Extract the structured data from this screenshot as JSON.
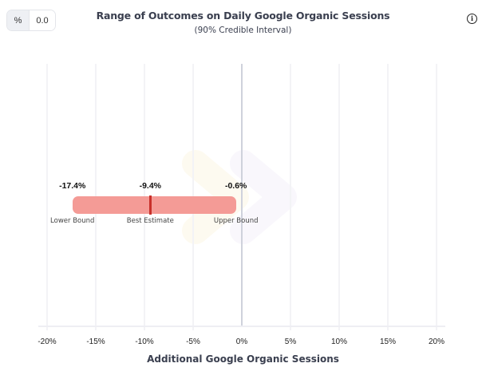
{
  "controls": {
    "unit_label": "%",
    "value_label": "0.0"
  },
  "header": {
    "title": "Range of Outcomes on Daily Google Organic Sessions",
    "subtitle": "(90% Credible Interval)",
    "info_icon": "info-icon",
    "info_glyph": "i"
  },
  "colors": {
    "bar_fill": "#f49b96",
    "best_estimate_marker": "#c8302a",
    "zero_line": "#cfd2dc",
    "gridline": "#f3f3f6"
  },
  "chart_data": {
    "type": "interval",
    "title": "Range of Outcomes on Daily Google Organic Sessions",
    "subtitle": "(90% Credible Interval)",
    "xlabel": "Additional Google Organic Sessions",
    "ylabel": "",
    "xlim": [
      -20,
      20
    ],
    "x_ticks": [
      -20,
      -15,
      -10,
      -5,
      0,
      5,
      10,
      15,
      20
    ],
    "x_tick_labels": [
      "-20%",
      "-15%",
      "-10%",
      "-5%",
      "0%",
      "5%",
      "10%",
      "15%",
      "20%"
    ],
    "grid": true,
    "reference_line": 0,
    "interval": {
      "lower": -17.4,
      "estimate": -9.4,
      "upper": -0.6,
      "lower_label": "-17.4%",
      "estimate_label": "-9.4%",
      "upper_label": "-0.6%",
      "lower_caption": "Lower Bound",
      "estimate_caption": "Best Estimate",
      "upper_caption": "Upper Bound"
    }
  }
}
